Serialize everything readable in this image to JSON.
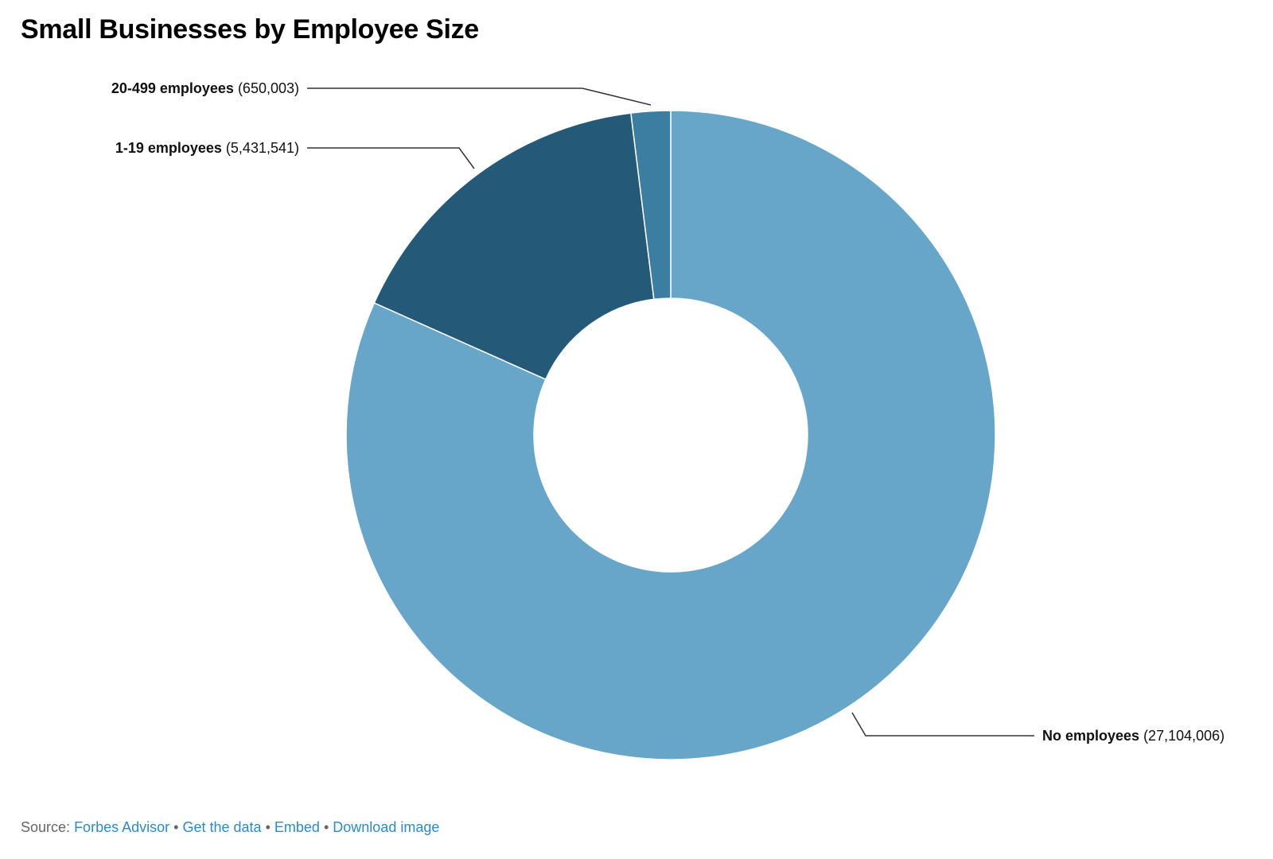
{
  "chart_data": {
    "type": "pie",
    "donut": true,
    "title": "Small Businesses by Employee Size",
    "slices": [
      {
        "label": "No employees",
        "value": 27104006,
        "value_text": "(27,104,006)",
        "color": "#67a6c8"
      },
      {
        "label": "1-19 employees",
        "value": 5431541,
        "value_text": "(5,431,541)",
        "color": "#245a78"
      },
      {
        "label": "20-499 employees",
        "value": 650003,
        "value_text": "(650,003)",
        "color": "#3b7ea1"
      }
    ]
  },
  "footer": {
    "source_label": "Source:",
    "source_link": "Forbes Advisor",
    "separator": "•",
    "links": [
      "Get the data",
      "Embed",
      "Download image"
    ]
  }
}
